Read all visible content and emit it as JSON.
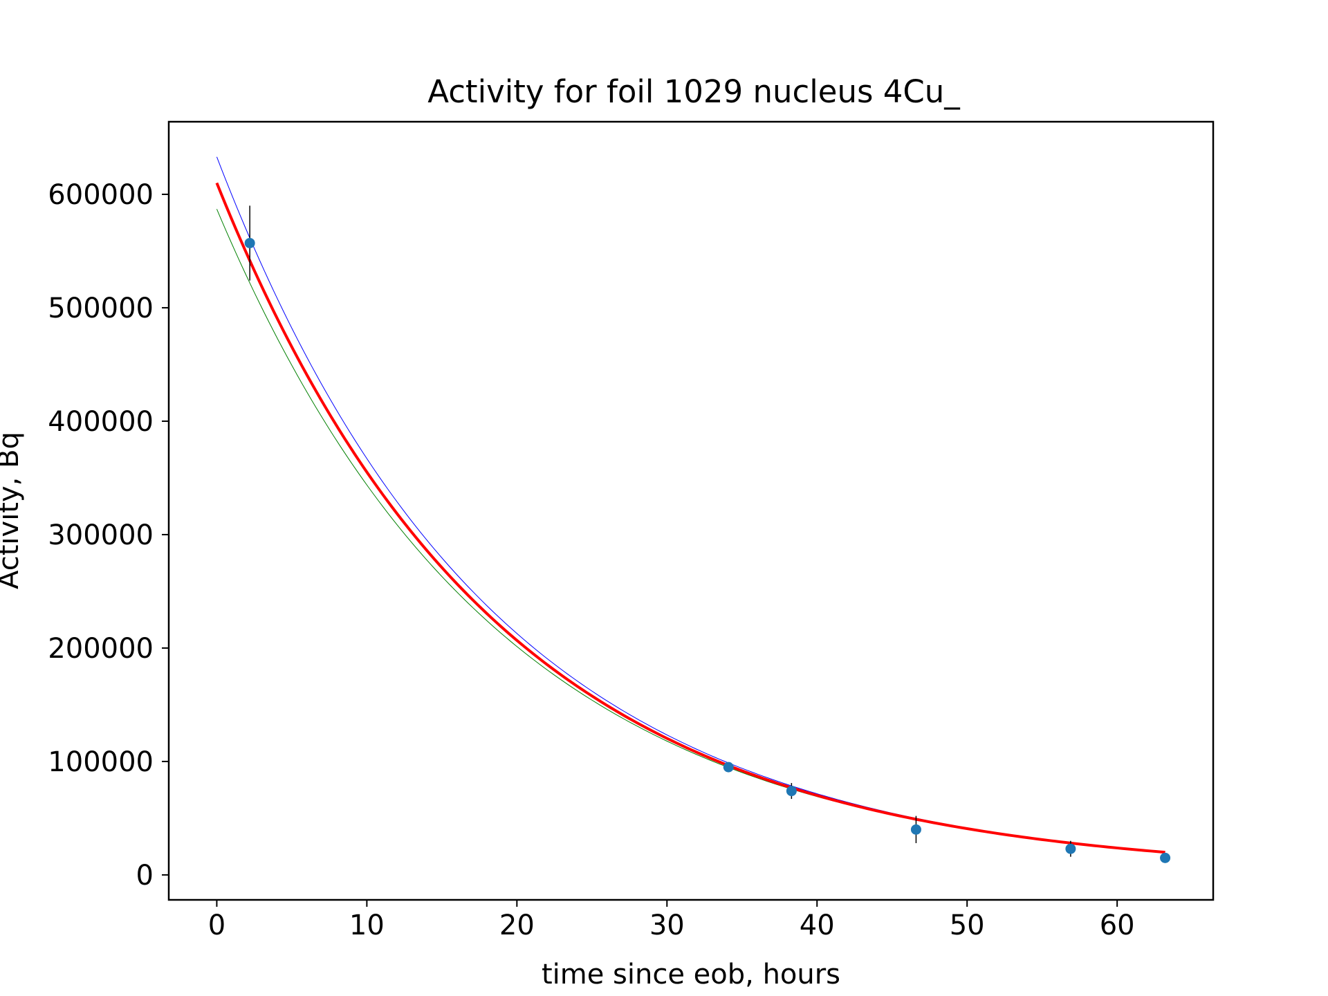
{
  "chart_data": {
    "type": "scatter",
    "title": "Activity for foil 1029 nucleus 4Cu_",
    "xlabel": "time since eob, hours",
    "ylabel": "Activity, Bq",
    "xlim": [
      -3.2,
      66.4
    ],
    "ylim": [
      -22000,
      664000
    ],
    "xticks": [
      0,
      10,
      20,
      30,
      40,
      50,
      60
    ],
    "yticks": [
      0,
      100000,
      200000,
      300000,
      400000,
      500000,
      600000
    ],
    "grid": false,
    "legend": "none",
    "points": {
      "color": "#1f77b4",
      "x": [
        2.2,
        34.1,
        38.3,
        46.6,
        56.9,
        63.2
      ],
      "y": [
        557000,
        95000,
        74000,
        40000,
        23000,
        15000
      ],
      "yerr": [
        33000,
        3000,
        7000,
        12000,
        7000,
        2000
      ]
    },
    "series": [
      {
        "color": "#0000ff",
        "x": [
          0,
          63.2
        ],
        "y0": 633000,
        "decay_per_hour": 0.0545,
        "width": 1
      },
      {
        "color": "#008000",
        "x": [
          0,
          63.2
        ],
        "y0": 587000,
        "decay_per_hour": 0.0535,
        "width": 1
      },
      {
        "color": "#ff0000",
        "x": [
          0,
          63.2
        ],
        "y0": 610000,
        "decay_per_hour": 0.0541,
        "width": 4
      }
    ]
  }
}
